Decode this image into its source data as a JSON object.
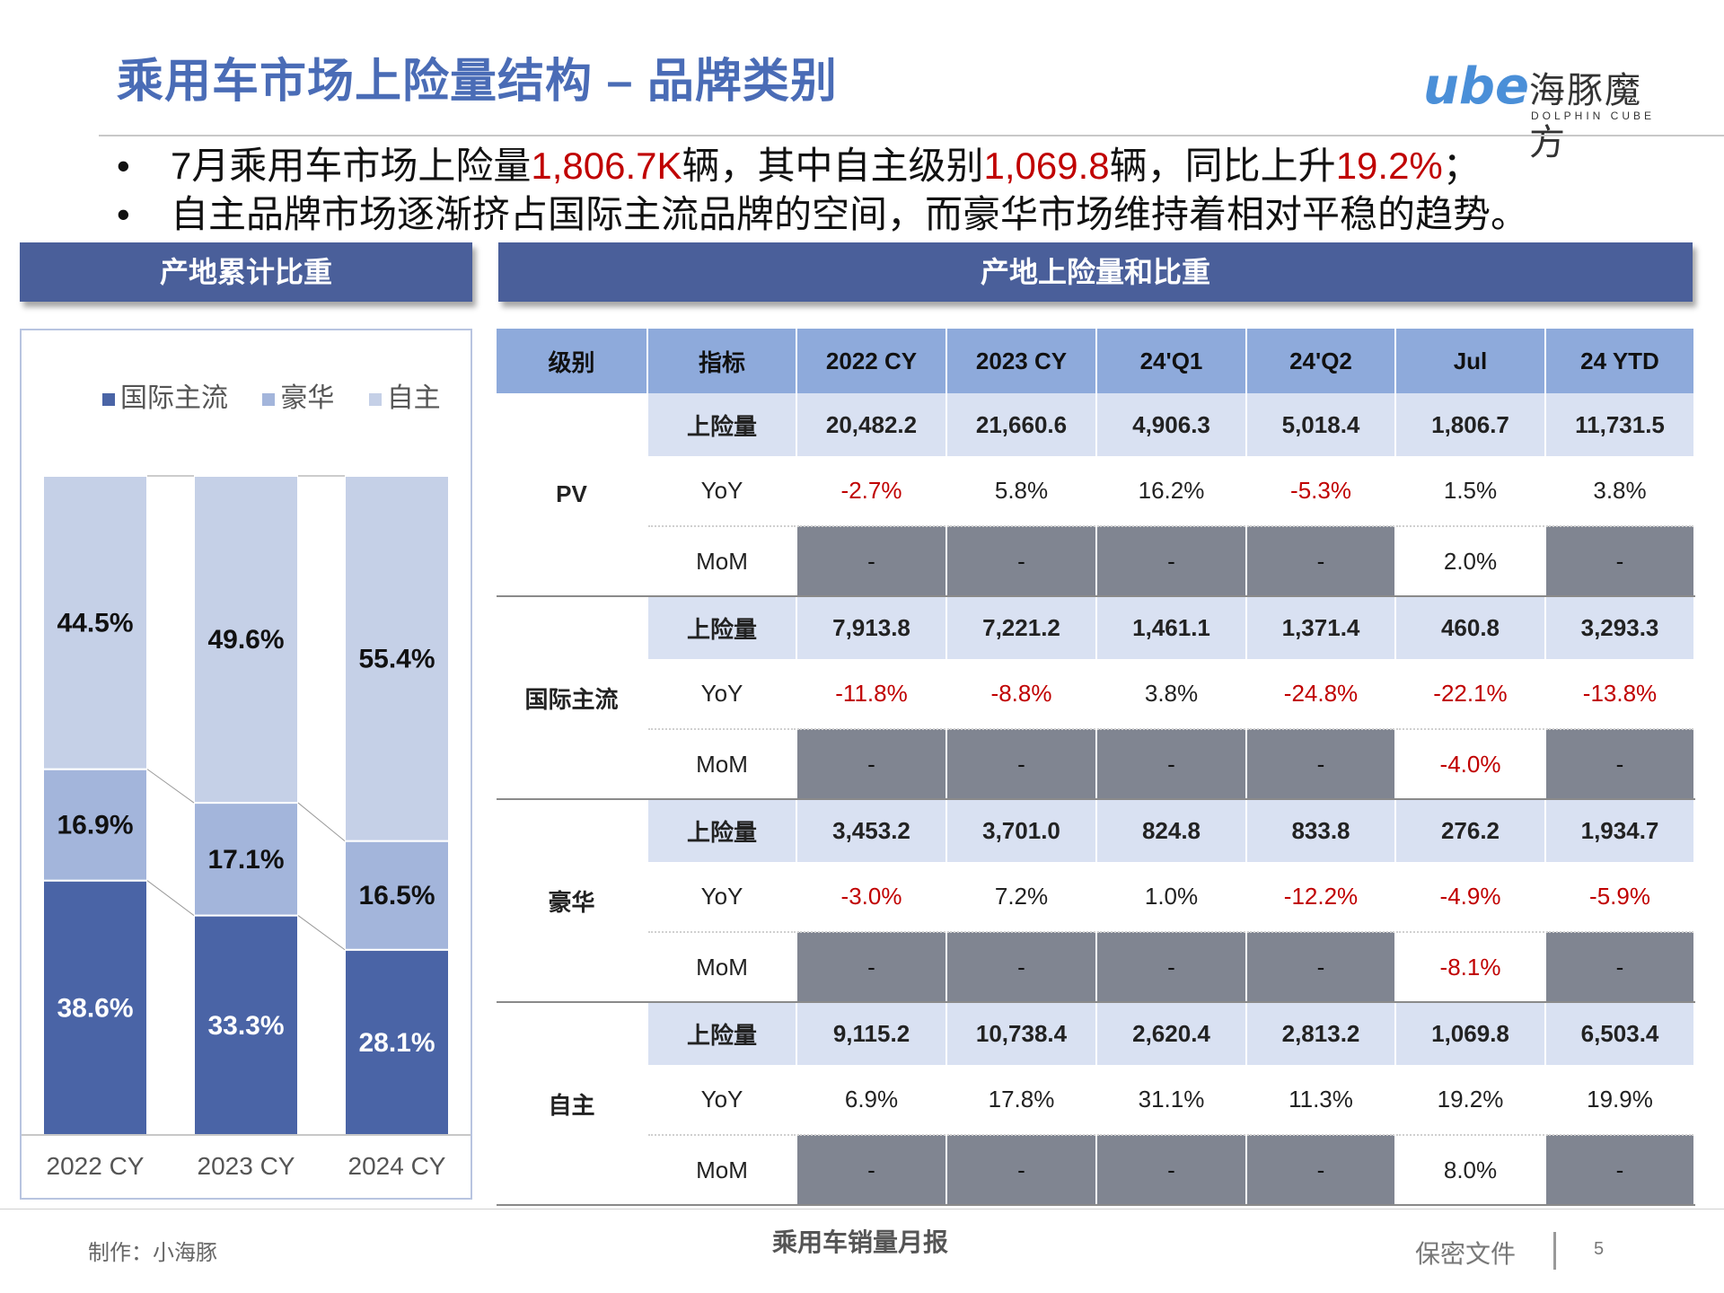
{
  "title": "乘用车市场上险量结构 – 品牌类别",
  "logo": {
    "mark": "ube",
    "cn": "海豚魔方",
    "en": "DOLPHIN CUBE"
  },
  "bullets": [
    {
      "parts": [
        "7月乘用车市场上险量",
        "1,806.7K",
        "辆，其中自主级别",
        "1,069.8",
        "辆，同比上升",
        "19.2%",
        "；"
      ]
    },
    {
      "text": "自主品牌市场逐渐挤占国际主流品牌的空间，而豪华市场维持着相对平稳的趋势。"
    }
  ],
  "bullet_mark": "•",
  "left_header": "产地累计比重",
  "right_header": "产地上险量和比重",
  "colors": {
    "header_bar": "#4a5f9a",
    "intl": "#4a64a6",
    "lux": "#a3b5db",
    "own": "#c5d0e7",
    "negative": "#c00000"
  },
  "chart_data": {
    "type": "bar",
    "stacked": true,
    "normalized": true,
    "categories": [
      "2022 CY",
      "2023 CY",
      "2024 CY"
    ],
    "series": [
      {
        "name": "国际主流",
        "values": [
          38.6,
          33.3,
          28.1
        ],
        "labels": [
          "38.6%",
          "33.3%",
          "28.1%"
        ]
      },
      {
        "name": "豪华",
        "values": [
          16.9,
          17.1,
          16.5
        ],
        "labels": [
          "16.9%",
          "17.1%",
          "16.5%"
        ]
      },
      {
        "name": "自主",
        "values": [
          44.5,
          49.6,
          55.4
        ],
        "labels": [
          "44.5%",
          "49.6%",
          "55.4%"
        ]
      }
    ],
    "ylim": [
      0,
      100
    ],
    "legend": "top",
    "grid": false
  },
  "table": {
    "headers": [
      "级别",
      "指标",
      "2022 CY",
      "2023 CY",
      "24'Q1",
      "24'Q2",
      "Jul",
      "24 YTD"
    ],
    "groups": [
      {
        "level": "PV",
        "rows": [
          {
            "metric": "上险量",
            "values": [
              "20,482.2",
              "21,660.6",
              "4,906.3",
              "5,018.4",
              "1,806.7",
              "11,731.5"
            ]
          },
          {
            "metric": "YoY",
            "values": [
              "-2.7%",
              "5.8%",
              "16.2%",
              "-5.3%",
              "1.5%",
              "3.8%"
            ]
          },
          {
            "metric": "MoM",
            "values": [
              "-",
              "-",
              "-",
              "-",
              "2.0%",
              "-"
            ]
          }
        ]
      },
      {
        "level": "国际主流",
        "rows": [
          {
            "metric": "上险量",
            "values": [
              "7,913.8",
              "7,221.2",
              "1,461.1",
              "1,371.4",
              "460.8",
              "3,293.3"
            ]
          },
          {
            "metric": "YoY",
            "values": [
              "-11.8%",
              "-8.8%",
              "3.8%",
              "-24.8%",
              "-22.1%",
              "-13.8%"
            ]
          },
          {
            "metric": "MoM",
            "values": [
              "-",
              "-",
              "-",
              "-",
              "-4.0%",
              "-"
            ]
          }
        ]
      },
      {
        "level": "豪华",
        "rows": [
          {
            "metric": "上险量",
            "values": [
              "3,453.2",
              "3,701.0",
              "824.8",
              "833.8",
              "276.2",
              "1,934.7"
            ]
          },
          {
            "metric": "YoY",
            "values": [
              "-3.0%",
              "7.2%",
              "1.0%",
              "-12.2%",
              "-4.9%",
              "-5.9%"
            ]
          },
          {
            "metric": "MoM",
            "values": [
              "-",
              "-",
              "-",
              "-",
              "-8.1%",
              "-"
            ]
          }
        ]
      },
      {
        "level": "自主",
        "rows": [
          {
            "metric": "上险量",
            "values": [
              "9,115.2",
              "10,738.4",
              "2,620.4",
              "2,813.2",
              "1,069.8",
              "6,503.4"
            ]
          },
          {
            "metric": "YoY",
            "values": [
              "6.9%",
              "17.8%",
              "31.1%",
              "11.3%",
              "19.2%",
              "19.9%"
            ]
          },
          {
            "metric": "MoM",
            "values": [
              "-",
              "-",
              "-",
              "-",
              "8.0%",
              "-"
            ]
          }
        ]
      }
    ]
  },
  "footer": {
    "maker": "制作：小海豚",
    "report": "乘用车销量月报",
    "confidential": "保密文件",
    "page": "5"
  }
}
